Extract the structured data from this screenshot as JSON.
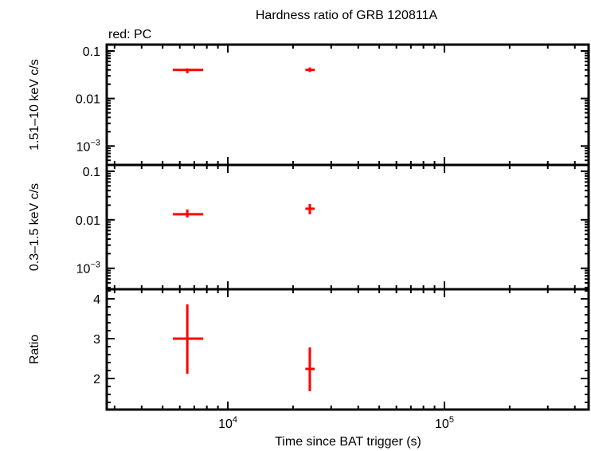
{
  "chart_data": {
    "type": "scatter",
    "title": "Hardness ratio of GRB 120811A",
    "annotation": "red: PC",
    "xlabel": "Time since BAT trigger (s)",
    "xscale": "log",
    "xlim": [
      2760,
      463000
    ],
    "x_ticks": [
      {
        "base": "10",
        "exp": "4",
        "value": 10000
      },
      {
        "base": "10",
        "exp": "5",
        "value": 100000
      }
    ],
    "series_color": "#ff0000",
    "panels": [
      {
        "name": "hard",
        "ylabel": "1.51–10 keV c/s",
        "yscale": "log",
        "ylim": [
          0.0004,
          0.136
        ],
        "y_ticks": [
          {
            "label": "0.1",
            "value": 0.1
          },
          {
            "label": "0.01",
            "value": 0.01
          },
          {
            "base": "10",
            "exp": "−3",
            "value": 0.001
          }
        ],
        "points": [
          {
            "x": 6500,
            "xlo": 5570,
            "xhi": 7700,
            "y": 0.04,
            "ylo": 0.034,
            "yhi": 0.043
          },
          {
            "x": 23900,
            "xlo": 22800,
            "xhi": 25200,
            "y": 0.04,
            "ylo": 0.036,
            "yhi": 0.045
          }
        ]
      },
      {
        "name": "soft",
        "ylabel": "0.3–1.5 keV c/s",
        "yscale": "log",
        "ylim": [
          0.00037,
          0.135
        ],
        "y_ticks": [
          {
            "label": "0.1",
            "value": 0.1
          },
          {
            "label": "0.01",
            "value": 0.01
          },
          {
            "base": "10",
            "exp": "−3",
            "value": 0.001
          }
        ],
        "points": [
          {
            "x": 6500,
            "xlo": 5570,
            "xhi": 7700,
            "y": 0.013,
            "ylo": 0.0112,
            "yhi": 0.0163
          },
          {
            "x": 23900,
            "xlo": 22800,
            "xhi": 25200,
            "y": 0.0169,
            "ylo": 0.013,
            "yhi": 0.0212
          }
        ]
      },
      {
        "name": "ratio",
        "ylabel": "Ratio",
        "yscale": "linear",
        "ylim": [
          1.22,
          4.24
        ],
        "y_ticks": [
          {
            "label": "4",
            "value": 4
          },
          {
            "label": "3",
            "value": 3
          },
          {
            "label": "2",
            "value": 2
          }
        ],
        "y_minor_step": 0.2,
        "points": [
          {
            "x": 6500,
            "xlo": 5570,
            "xhi": 7700,
            "y": 3.0,
            "ylo": 2.12,
            "yhi": 3.86
          },
          {
            "x": 23900,
            "xlo": 22800,
            "xhi": 25200,
            "y": 2.24,
            "ylo": 1.68,
            "yhi": 2.78
          }
        ]
      }
    ]
  }
}
